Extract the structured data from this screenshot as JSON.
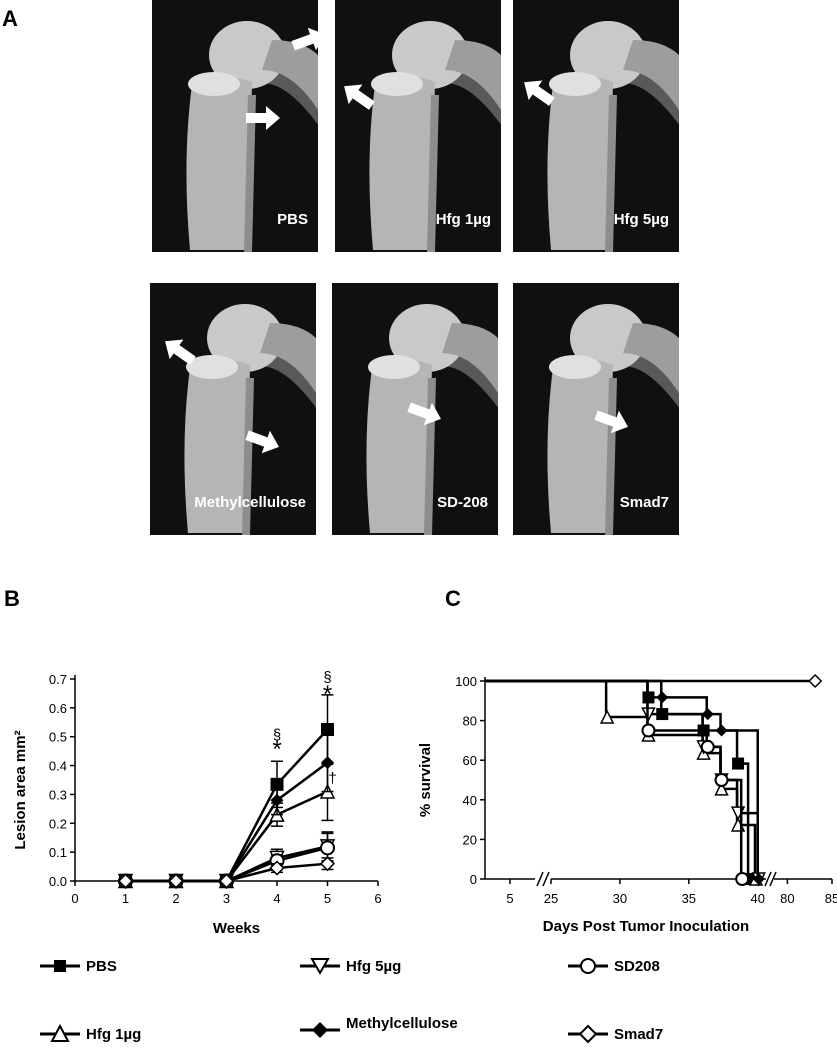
{
  "panels": {
    "a": "A",
    "b": "B",
    "c": "C"
  },
  "xrays": [
    {
      "label": "PBS"
    },
    {
      "label": "Hfg 1µg"
    },
    {
      "label": "Hfg 5µg"
    },
    {
      "label": "Methylcellulose"
    },
    {
      "label": "SD-208"
    },
    {
      "label": "Smad7"
    }
  ],
  "chart_data": [
    {
      "type": "line",
      "panel": "B",
      "xlabel": "Weeks",
      "ylabel": "Lesion area mm²",
      "xlim": [
        0,
        6
      ],
      "ylim": [
        0,
        0.7
      ],
      "xticks": [
        "0",
        "1",
        "2",
        "3",
        "4",
        "5",
        "6"
      ],
      "yticks": [
        "0.0",
        "0.1",
        "0.2",
        "0.3",
        "0.4",
        "0.5",
        "0.6",
        "0.7"
      ],
      "x": [
        1,
        2,
        3,
        4,
        5
      ],
      "series": [
        {
          "name": "PBS",
          "marker": "square",
          "values": [
            0,
            0,
            0,
            0.335,
            0.525
          ],
          "err": [
            0,
            0,
            0,
            0.08,
            0.12
          ]
        },
        {
          "name": "Hfg 1µg",
          "marker": "triangle",
          "values": [
            0,
            0,
            0,
            0.23,
            0.31
          ],
          "err": [
            0,
            0,
            0,
            0.04,
            0.1
          ]
        },
        {
          "name": "Hfg 5µg",
          "marker": "inv-triangle",
          "values": [
            0,
            0,
            0,
            0.08,
            0.12
          ],
          "err": [
            0,
            0,
            0,
            0.03,
            0.05
          ]
        },
        {
          "name": "Methylcellulose",
          "marker": "diamond",
          "values": [
            0,
            0,
            0,
            0.28,
            0.41
          ],
          "err": [
            0,
            0,
            0,
            0.05,
            0.1
          ]
        },
        {
          "name": "SD208",
          "marker": "circle",
          "values": [
            0,
            0,
            0,
            0.07,
            0.115
          ],
          "err": [
            0,
            0,
            0,
            0.02,
            0.05
          ]
        },
        {
          "name": "Smad7",
          "marker": "open-diamond",
          "values": [
            0,
            0,
            0,
            0.045,
            0.06
          ],
          "err": [
            0,
            0,
            0,
            0.015,
            0.02
          ]
        }
      ],
      "annotations": [
        {
          "text": "§",
          "x": 4,
          "y": 0.49
        },
        {
          "text": "*",
          "x": 4,
          "y": 0.43
        },
        {
          "text": "§",
          "x": 5,
          "y": 0.69
        },
        {
          "text": "*",
          "x": 5,
          "y": 0.62
        },
        {
          "text": "†",
          "x": 5.1,
          "y": 0.34
        }
      ]
    },
    {
      "type": "line",
      "panel": "C",
      "xlabel": "Days Post Tumor Inoculation",
      "ylabel": "% survival",
      "ylim": [
        0,
        100
      ],
      "yticks": [
        "0",
        "20",
        "40",
        "60",
        "80",
        "100"
      ],
      "xticks": [
        "5",
        "25",
        "30",
        "35",
        "40",
        "80",
        "85"
      ],
      "x_axis_breaks": true,
      "series": [
        {
          "name": "PBS",
          "marker": "square",
          "steps": [
            [
              0,
              100
            ],
            [
              32,
              91.7
            ],
            [
              33,
              83.3
            ],
            [
              36,
              75
            ],
            [
              38.5,
              58.3
            ],
            [
              39.3,
              0
            ]
          ]
        },
        {
          "name": "Hfg 1µg",
          "marker": "triangle",
          "steps": [
            [
              0,
              100
            ],
            [
              29,
              81.8
            ],
            [
              32,
              72.7
            ],
            [
              36,
              63.6
            ],
            [
              37.3,
              45.5
            ],
            [
              38.5,
              27.3
            ],
            [
              39.8,
              0
            ]
          ]
        },
        {
          "name": "Hfg 5µg",
          "marker": "inv-triangle",
          "steps": [
            [
              0,
              100
            ],
            [
              32,
              83.3
            ],
            [
              36,
              66.7
            ],
            [
              37.3,
              50
            ],
            [
              38.5,
              33.3
            ],
            [
              40,
              0
            ]
          ]
        },
        {
          "name": "Methylcellulose",
          "marker": "diamond",
          "steps": [
            [
              0,
              100
            ],
            [
              33,
              91.7
            ],
            [
              36.3,
              83.3
            ],
            [
              37.3,
              75
            ],
            [
              40,
              0
            ]
          ]
        },
        {
          "name": "SD208",
          "marker": "circle",
          "steps": [
            [
              0,
              100
            ],
            [
              32,
              75
            ],
            [
              36.3,
              66.7
            ],
            [
              37.3,
              50
            ],
            [
              38.8,
              0
            ]
          ]
        },
        {
          "name": "Smad7",
          "marker": "open-diamond",
          "steps": [
            [
              0,
              100
            ],
            [
              83,
              100
            ]
          ]
        }
      ]
    }
  ],
  "legend": [
    {
      "label": "PBS"
    },
    {
      "label": "Hfg 5µg"
    },
    {
      "label": "SD208"
    },
    {
      "label": "Hfg 1µg"
    },
    {
      "label": "Methylcellulose"
    },
    {
      "label": "Smad7"
    }
  ],
  "colors": {
    "xray_bg": "#0b0b0b",
    "bone": "#d8d8d8",
    "ink": "#000000"
  }
}
